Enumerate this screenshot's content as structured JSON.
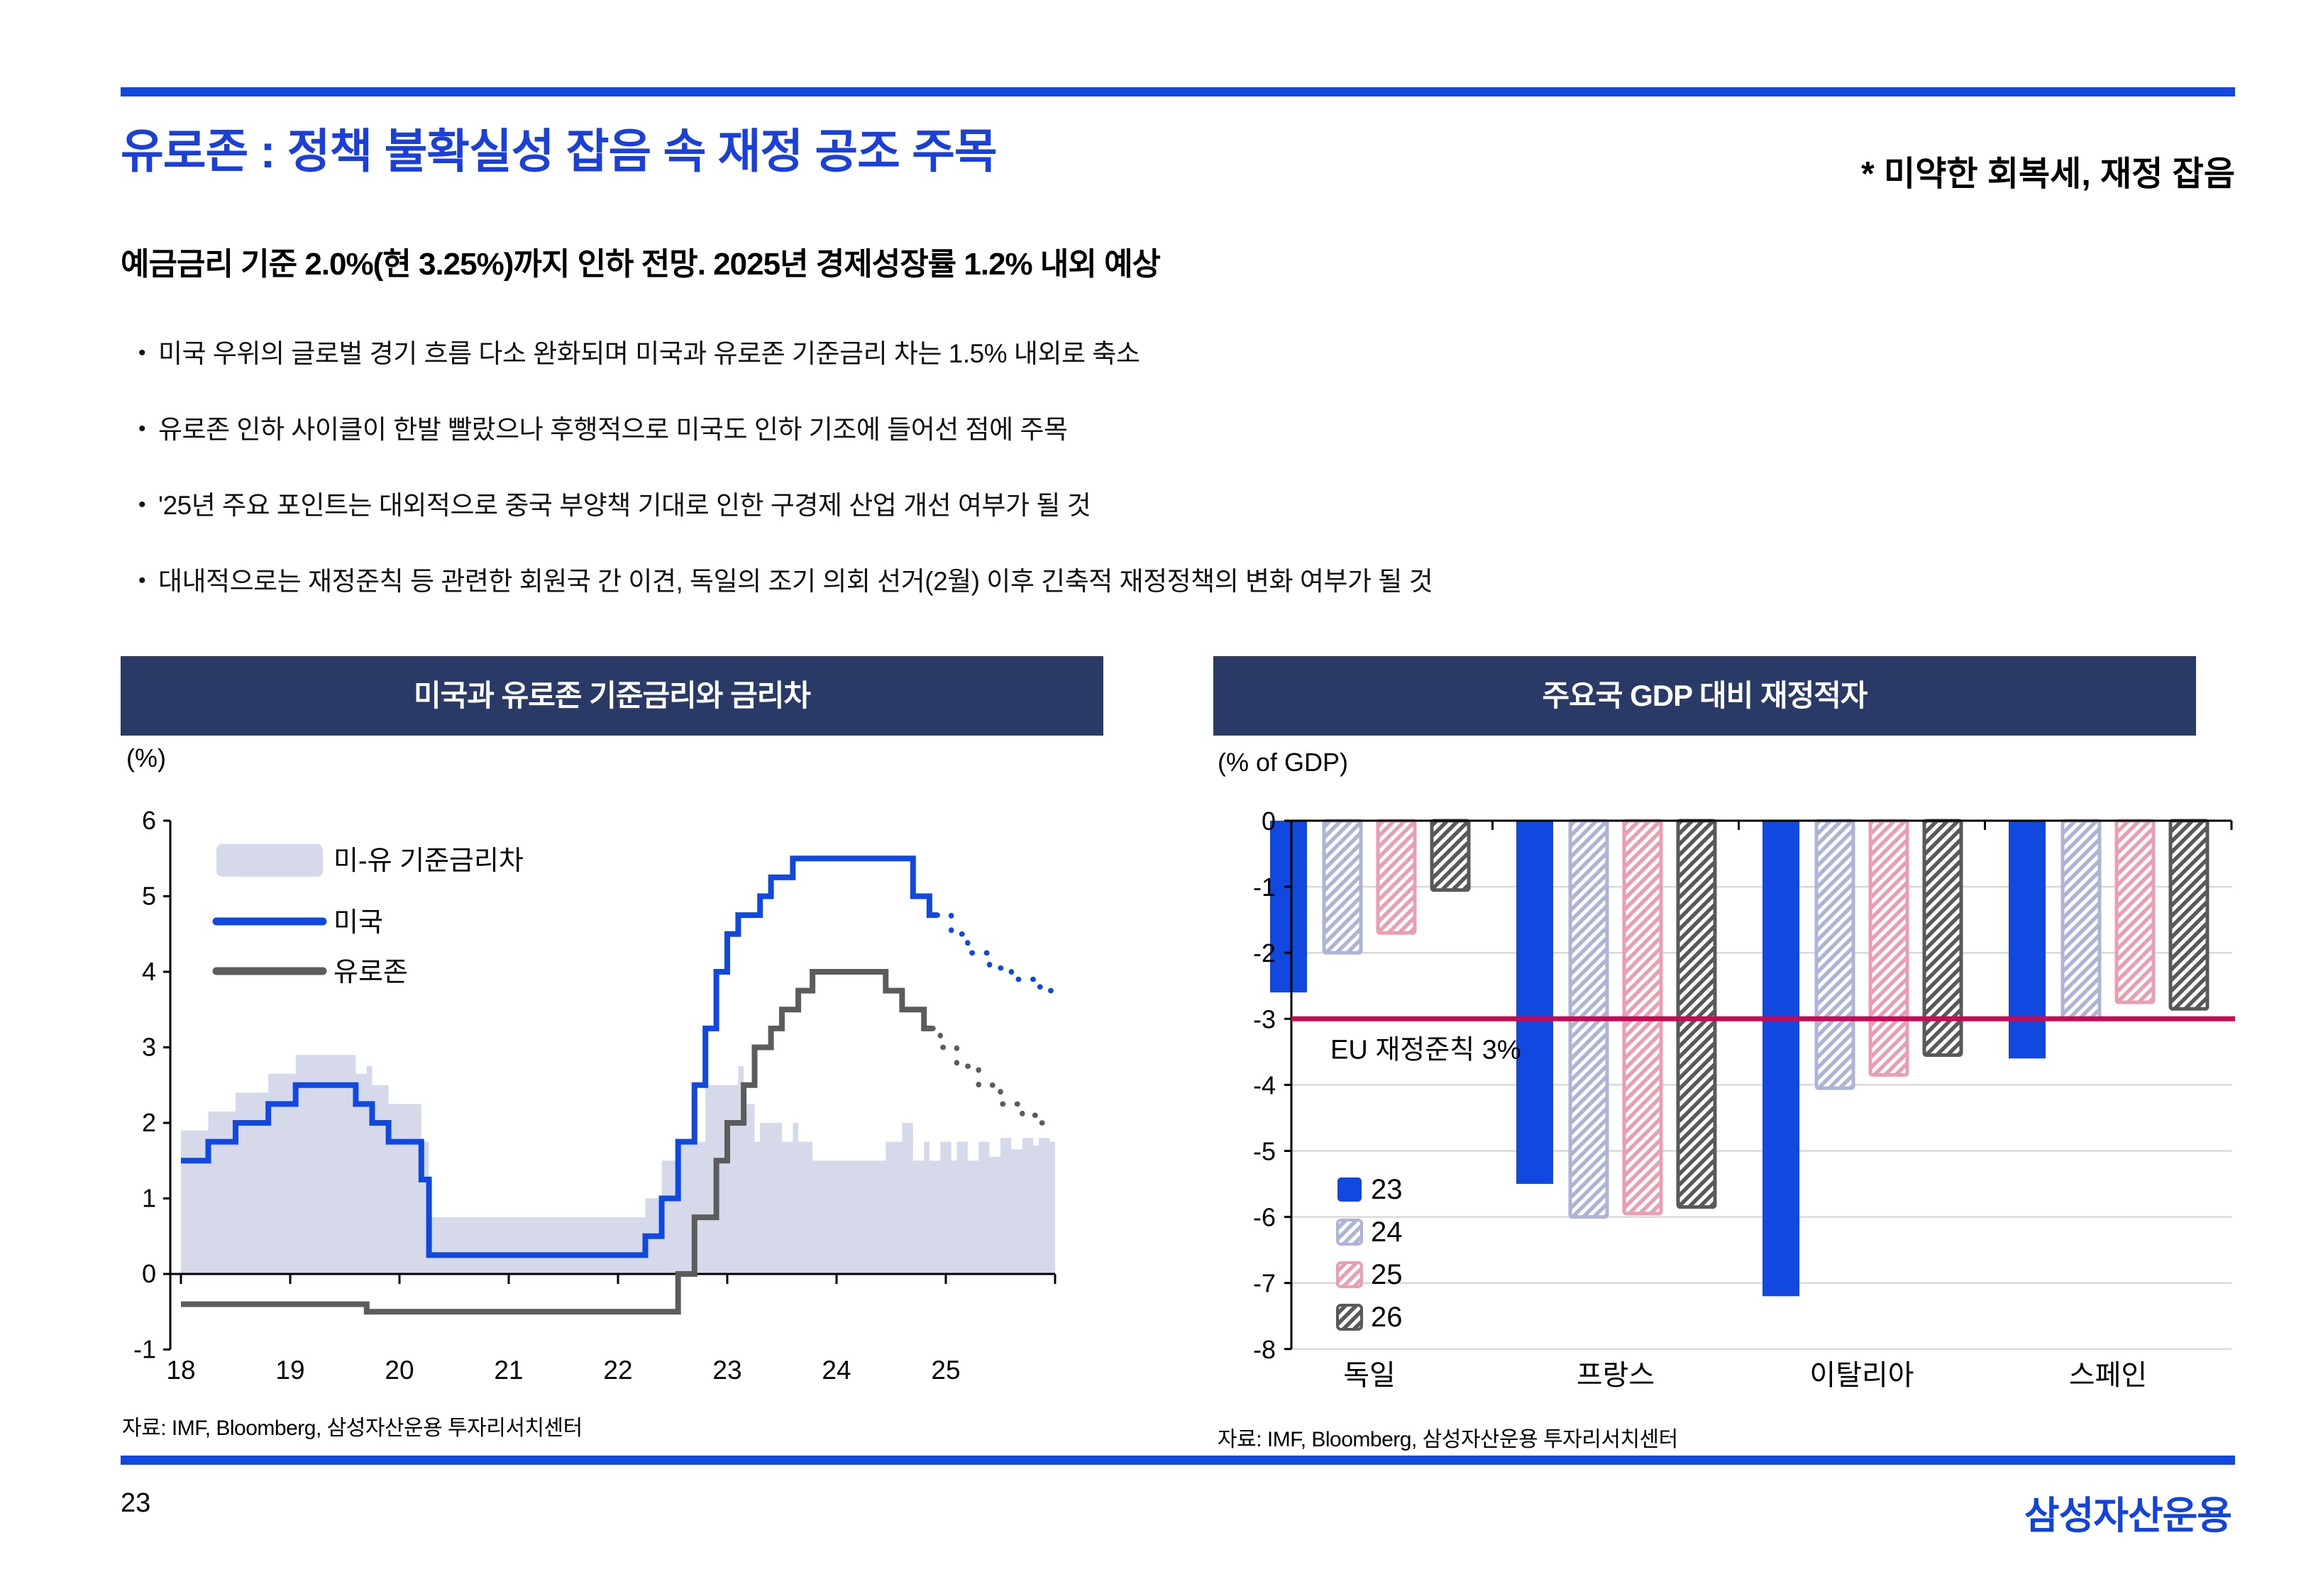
{
  "page": {
    "title": "유로존 : 정책 불확실성 잡음 속 재정 공조 주목",
    "title_note": "* 미약한 회복세, 재정 잡음",
    "subtitle": "예금금리 기준 2.0%(현 3.25%)까지 인하 전망. 2025년 경제성장률 1.2% 내외 예상",
    "bullet_marker": "•",
    "bullets": [
      "미국 우위의 글로벌 경기 흐름 다소 완화되며 미국과 유로존 기준금리 차는 1.5% 내외로 축소",
      "유로존 인하 사이클이 한발 빨랐으나 후행적으로 미국도 인하 기조에 들어선 점에 주목",
      "'25년 주요 포인트는 대외적으로 중국 부양책 기대로 인한 구경제 산업 개선 여부가 될 것",
      "대내적으로는 재정준칙 등 관련한 회원국 간 이견, 독일의 조기 의회 선거(2월) 이후 긴축적 재정정책의 변화 여부가 될 것"
    ],
    "page_number": "23",
    "logo": "삼성자산운용"
  },
  "colors": {
    "accent_blue": "#1149E0",
    "title_blue": "#1A40D9",
    "navy_header": "#2A3A66",
    "area_fill": "#D5D9E9",
    "us_line": "#1149E0",
    "eu_line": "#5C5C5C",
    "grid": "#D9D9D9",
    "axis": "#000000",
    "ref_crimson": "#C50B56",
    "bar_blue": "#1149E0",
    "hatch_lavender": "#ADB4D6",
    "hatch_pink": "#E89FB1",
    "hatch_dark": "#595959"
  },
  "chart_data": [
    {
      "type": "line",
      "title": "미국과 유로존 기준금리와 금리차",
      "unit": "(%)",
      "ylim": [
        -1,
        6
      ],
      "yticks": [
        6,
        5,
        4,
        3,
        2,
        1,
        0,
        -1
      ],
      "xlim": [
        18,
        26
      ],
      "xtick_years": [
        18,
        19,
        20,
        21,
        22,
        23,
        24,
        25
      ],
      "xtick_labels": [
        "18",
        "19",
        "20",
        "21",
        "22",
        "23",
        "24",
        "25"
      ],
      "grid": false,
      "legend_position": "inside-top-left",
      "area_series": {
        "name": "미-유 기준금리차",
        "derived": "us_minus_eu",
        "baseline": 0
      },
      "series": [
        {
          "name": "미국",
          "color_key": "us_line",
          "forecast_from": 24.92,
          "steps": [
            [
              18,
              1.5
            ],
            [
              18.25,
              1.75
            ],
            [
              18.5,
              2.0
            ],
            [
              18.8,
              2.25
            ],
            [
              19.05,
              2.5
            ],
            [
              19.6,
              2.25
            ],
            [
              19.75,
              2.0
            ],
            [
              19.9,
              1.75
            ],
            [
              20.2,
              1.25
            ],
            [
              20.27,
              0.25
            ],
            [
              22.25,
              0.5
            ],
            [
              22.4,
              1.0
            ],
            [
              22.55,
              1.75
            ],
            [
              22.7,
              2.5
            ],
            [
              22.8,
              3.25
            ],
            [
              22.9,
              4.0
            ],
            [
              23.0,
              4.5
            ],
            [
              23.1,
              4.75
            ],
            [
              23.3,
              5.0
            ],
            [
              23.4,
              5.25
            ],
            [
              23.6,
              5.5
            ],
            [
              24.7,
              5.0
            ],
            [
              24.85,
              4.75
            ],
            [
              25.05,
              4.5
            ],
            [
              25.2,
              4.25
            ],
            [
              25.4,
              4.05
            ],
            [
              25.6,
              3.9
            ],
            [
              25.8,
              3.8
            ],
            [
              25.95,
              3.75
            ]
          ]
        },
        {
          "name": "유로존",
          "color_key": "eu_line",
          "forecast_from": 24.88,
          "steps": [
            [
              18,
              -0.4
            ],
            [
              19.7,
              -0.5
            ],
            [
              22.55,
              0.0
            ],
            [
              22.7,
              0.75
            ],
            [
              22.9,
              1.5
            ],
            [
              23.0,
              2.0
            ],
            [
              23.15,
              2.5
            ],
            [
              23.25,
              3.0
            ],
            [
              23.4,
              3.25
            ],
            [
              23.5,
              3.5
            ],
            [
              23.65,
              3.75
            ],
            [
              23.78,
              4.0
            ],
            [
              24.45,
              3.75
            ],
            [
              24.6,
              3.5
            ],
            [
              24.8,
              3.25
            ],
            [
              24.95,
              3.0
            ],
            [
              25.1,
              2.75
            ],
            [
              25.3,
              2.5
            ],
            [
              25.5,
              2.25
            ],
            [
              25.7,
              2.1
            ],
            [
              25.85,
              2.0
            ]
          ]
        }
      ],
      "source": "자료: IMF, Bloomberg, 삼성자산운용 투자리서치센터"
    },
    {
      "type": "bar",
      "title": "주요국  GDP 대비 재정적자",
      "unit": "(% of GDP)",
      "ylim": [
        -8,
        0
      ],
      "yticks": [
        0,
        -1,
        -2,
        -3,
        -4,
        -5,
        -6,
        -7,
        -8
      ],
      "grid": true,
      "categories": [
        "독일",
        "프랑스",
        "이탈리아",
        "스페인"
      ],
      "series": [
        {
          "name": "23",
          "style": "solid-blue",
          "values": [
            -2.6,
            -5.5,
            -7.2,
            -3.6
          ]
        },
        {
          "name": "24",
          "style": "hatch-lavender",
          "values": [
            -2.0,
            -6.0,
            -4.05,
            -3.0
          ]
        },
        {
          "name": "25",
          "style": "hatch-pink",
          "values": [
            -1.7,
            -5.95,
            -3.85,
            -2.75
          ]
        },
        {
          "name": "26",
          "style": "hatch-dark",
          "values": [
            -1.05,
            -5.85,
            -3.55,
            -2.85
          ]
        }
      ],
      "ref_line": {
        "value": -3,
        "label": "EU 재정준칙 3%"
      },
      "legend_position": "inside-left",
      "source": "자료: IMF, Bloomberg, 삼성자산운용 투자리서치센터"
    }
  ]
}
